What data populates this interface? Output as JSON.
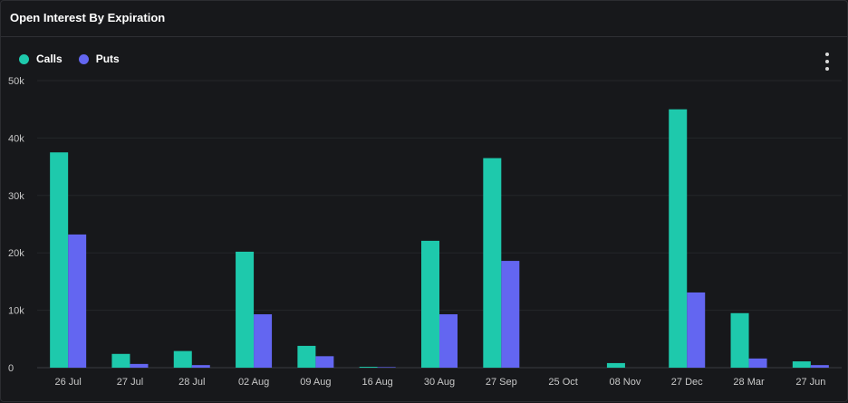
{
  "header": {
    "title": "Open Interest By Expiration"
  },
  "legend": [
    {
      "label": "Calls",
      "color": "#1ec9ac"
    },
    {
      "label": "Puts",
      "color": "#6366f1"
    }
  ],
  "menu_icon": "more-vertical-icon",
  "colors": {
    "background": "#17181b",
    "grid": "#25262a",
    "calls": "#1ec9ac",
    "puts": "#6366f1"
  },
  "chart_data": {
    "type": "bar",
    "title": "Open Interest By Expiration",
    "xlabel": "",
    "ylabel": "",
    "ylim": [
      0,
      50000
    ],
    "yticks": [
      0,
      10000,
      20000,
      30000,
      40000,
      50000
    ],
    "ytick_labels": [
      "0",
      "10k",
      "20k",
      "30k",
      "40k",
      "50k"
    ],
    "grid": true,
    "legend_position": "top-left",
    "categories": [
      "26 Jul",
      "27 Jul",
      "28 Jul",
      "02 Aug",
      "09 Aug",
      "16 Aug",
      "30 Aug",
      "27 Sep",
      "25 Oct",
      "08 Nov",
      "27 Dec",
      "28 Mar",
      "27 Jun"
    ],
    "series": [
      {
        "name": "Calls",
        "color": "#1ec9ac",
        "values": [
          37500,
          2400,
          2900,
          20200,
          3800,
          150,
          22100,
          36500,
          0,
          800,
          45000,
          9500,
          1100
        ]
      },
      {
        "name": "Puts",
        "color": "#6366f1",
        "values": [
          23200,
          650,
          450,
          9300,
          2000,
          100,
          9300,
          18600,
          0,
          0,
          13100,
          1600,
          450
        ]
      }
    ]
  }
}
